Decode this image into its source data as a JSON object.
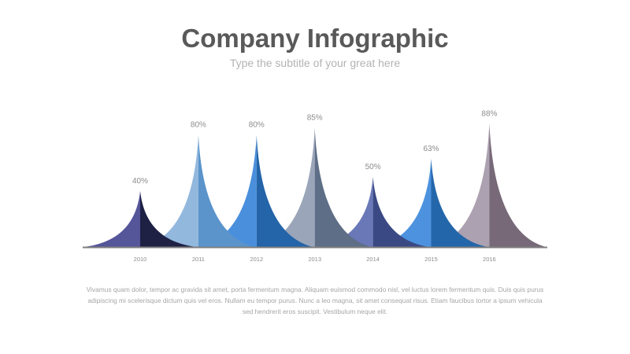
{
  "header": {
    "title": "Company Infographic",
    "subtitle": "Type the subtitle of your great here"
  },
  "chart_data": {
    "type": "bar",
    "style": "spike peaks",
    "categories": [
      "2010",
      "2011",
      "2012",
      "2013",
      "2014",
      "2015",
      "2016"
    ],
    "values": [
      40,
      80,
      80,
      85,
      50,
      63,
      88
    ],
    "labels": [
      "40%",
      "80%",
      "80%",
      "85%",
      "50%",
      "63%",
      "88%"
    ],
    "ylim": [
      0,
      100
    ],
    "colors": [
      {
        "light": "#55559a",
        "dark": "#1e2044"
      },
      {
        "light": "#93b8de",
        "dark": "#5a94cb"
      },
      {
        "light": "#4a8fdc",
        "dark": "#2464a8"
      },
      {
        "light": "#9aa5b9",
        "dark": "#5e6e86"
      },
      {
        "light": "#6a78b8",
        "dark": "#3a4984"
      },
      {
        "light": "#4d92de",
        "dark": "#2466aa"
      },
      {
        "light": "#aca1b0",
        "dark": "#776978"
      }
    ],
    "axis_color": "#808080"
  },
  "body": {
    "paragraph": "Vivamus quam dolor, tempor ac gravida sit amet, porta fermentum magna. Aliquam euismod commodo nisl, vel luctus lorem fermentum quis. Duis quis purus adipiscing mi scelerisque dictum quis vel eros. Nullam eu tempor purus. Nunc a leo magna, sit amet consequat risus. Etiam faucibus tortor a ipsum vehicula sed hendrerit eros suscipit. Vestibulum neque elit."
  }
}
